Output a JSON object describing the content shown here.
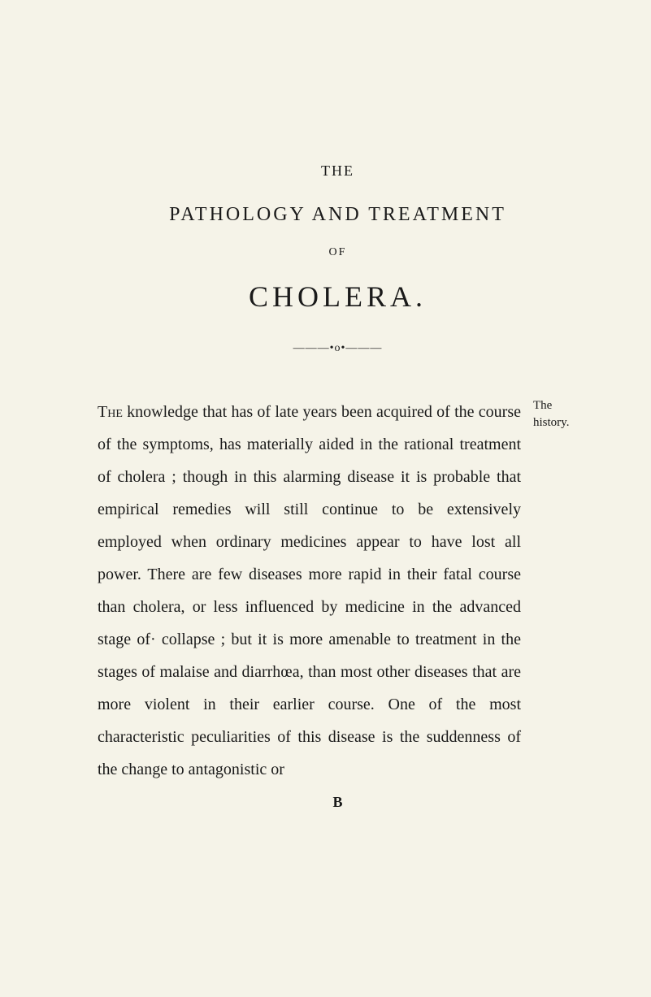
{
  "header": {
    "the": "THE",
    "subtitle": "PATHOLOGY AND TREATMENT",
    "of": "OF",
    "title": "CHOLERA.",
    "ornament": "———•o•———"
  },
  "body": {
    "first_word": "The",
    "text": " knowledge that has of late years been ac­quired of the course of the symptoms, has ma­terially aided in the rational treatment of cholera ; though in this alarming disease it is probable that empirical remedies will still continue to be extensively employed when ordinary medicines appear to have lost all power. There are few diseases more rapid in their fatal course than cholera, or less influenced by medicine in the advanced stage of· collapse ; but it is more amen­able to treatment in the stages of malaise and diarrhœa, than most other diseases that are more violent in their earlier course. One of the most characteristic peculiarities of this disease is the suddenness of the change to antagonistic or"
  },
  "margin": {
    "line1": "The",
    "line2": "history."
  },
  "footer": {
    "mark": "B"
  },
  "colors": {
    "background": "#f5f3e8",
    "text": "#1a1a1a"
  },
  "typography": {
    "body_fontsize": 20,
    "line_height": 2.0,
    "title_fontsize": 36,
    "subtitle_fontsize": 24,
    "margin_note_fontsize": 15
  }
}
